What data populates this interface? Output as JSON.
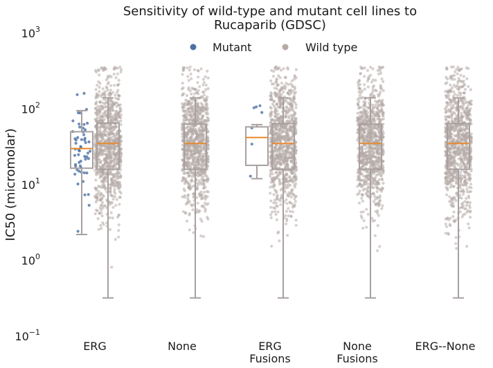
{
  "chart_data": {
    "type": "box-strip",
    "title_line1": "Sensitivity of wild-type and mutant cell lines to",
    "title_line2": "Rucaparib (GDSC)",
    "ylabel": "IC50 (micromolar)",
    "xlabel": "",
    "yscale": "log",
    "ylim": [
      0.1,
      1000
    ],
    "yticks": [
      {
        "base": "10",
        "exp": "−1",
        "value": 0.1
      },
      {
        "base": "10",
        "exp": "0",
        "value": 1
      },
      {
        "base": "10",
        "exp": "1",
        "value": 10
      },
      {
        "base": "10",
        "exp": "2",
        "value": 100
      },
      {
        "base": "10",
        "exp": "3",
        "value": 1000
      }
    ],
    "legend": {
      "placement": "top-center",
      "entries": [
        {
          "name": "Mutant",
          "color": "#4c72a4"
        },
        {
          "name": "Wild type",
          "color": "#b5aaa6"
        }
      ]
    },
    "colors": {
      "mutant": "#4c72a4",
      "wild_type": "#b5aaa6",
      "median": "#e8892c",
      "box": "#a8a0a0"
    },
    "categories": [
      {
        "label_lines": [
          "ERG"
        ],
        "boxes": [
          {
            "group": "Mutant",
            "q1": 16.5,
            "median": 30,
            "q3": 50,
            "whisker_low": 2.2,
            "whisker_high": 95,
            "n": 55
          },
          {
            "group": "Wild type",
            "q1": 16,
            "median": 35,
            "q3": 65,
            "whisker_low": 0.32,
            "whisker_high": 140,
            "n": 900
          }
        ]
      },
      {
        "label_lines": [
          "None"
        ],
        "boxes": [
          {
            "group": "Wild type",
            "q1": 16,
            "median": 35,
            "q3": 63,
            "whisker_low": 0.32,
            "whisker_high": 140,
            "n": 900
          }
        ]
      },
      {
        "label_lines": [
          "ERG",
          "Fusions"
        ],
        "boxes": [
          {
            "group": "Mutant",
            "q1": 18,
            "median": 42,
            "q3": 58,
            "whisker_low": 12,
            "whisker_high": 62,
            "n": 7
          },
          {
            "group": "Wild type",
            "q1": 16,
            "median": 35,
            "q3": 64,
            "whisker_low": 0.32,
            "whisker_high": 140,
            "n": 900
          }
        ]
      },
      {
        "label_lines": [
          "None",
          "Fusions"
        ],
        "boxes": [
          {
            "group": "Wild type",
            "q1": 16,
            "median": 35,
            "q3": 63,
            "whisker_low": 0.32,
            "whisker_high": 140,
            "n": 900
          }
        ]
      },
      {
        "label_lines": [
          "ERG--None"
        ],
        "boxes": [
          {
            "group": "Wild type",
            "q1": 16,
            "median": 35,
            "q3": 64,
            "whisker_low": 0.32,
            "whisker_high": 140,
            "n": 900
          }
        ]
      }
    ]
  }
}
